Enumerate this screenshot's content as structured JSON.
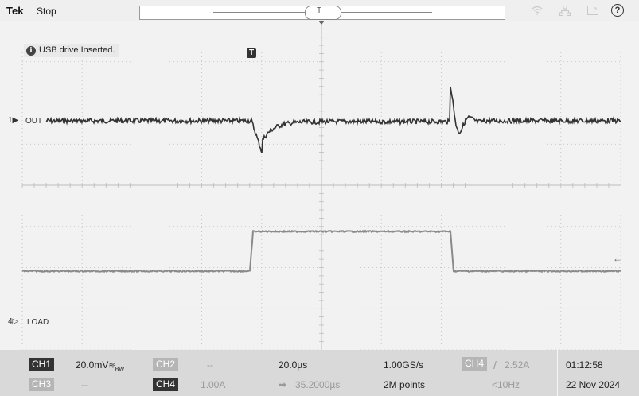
{
  "topbar": {
    "brand": "Tek",
    "acq_state": "Stop",
    "trigger_marker": "T",
    "help_icon": "?",
    "icons": [
      "wifi-icon",
      "network-icon",
      "window-icon",
      "help-icon"
    ]
  },
  "screen": {
    "notice_icon": "i",
    "notice": "USB drive Inserted.",
    "ch1_marker": "1▶",
    "ch1_label": "OUT",
    "ch4_marker": "4▷",
    "ch4_label": "LOAD",
    "trigger_pos_marker": "T",
    "trigger_level_marker": "←",
    "colors": {
      "background": "#f2f2f2",
      "grid": "#bcbcbc",
      "ch1_trace": "#333333",
      "ch4_trace": "#888888"
    }
  },
  "readout": {
    "ch1": {
      "badge": "CH1",
      "scale": "20.0mV",
      "coupling": "≋",
      "bw": "BW"
    },
    "ch2": {
      "badge": "CH2",
      "scale": "--"
    },
    "ch3": {
      "badge": "CH3",
      "scale": "--"
    },
    "ch4": {
      "badge": "CH4",
      "scale": "1.00A"
    },
    "horizontal": {
      "scale": "20.0µs",
      "delay_icon": "➡",
      "delay": "35.2000µs",
      "sample_rate": "1.00GS/s",
      "record_length": "2M points"
    },
    "trigger": {
      "source": "CH4",
      "slope": "/",
      "level": "2.52A",
      "frequency": "<10Hz"
    },
    "clock": {
      "time": "01:12:58",
      "date": "22 Nov 2024"
    }
  }
}
